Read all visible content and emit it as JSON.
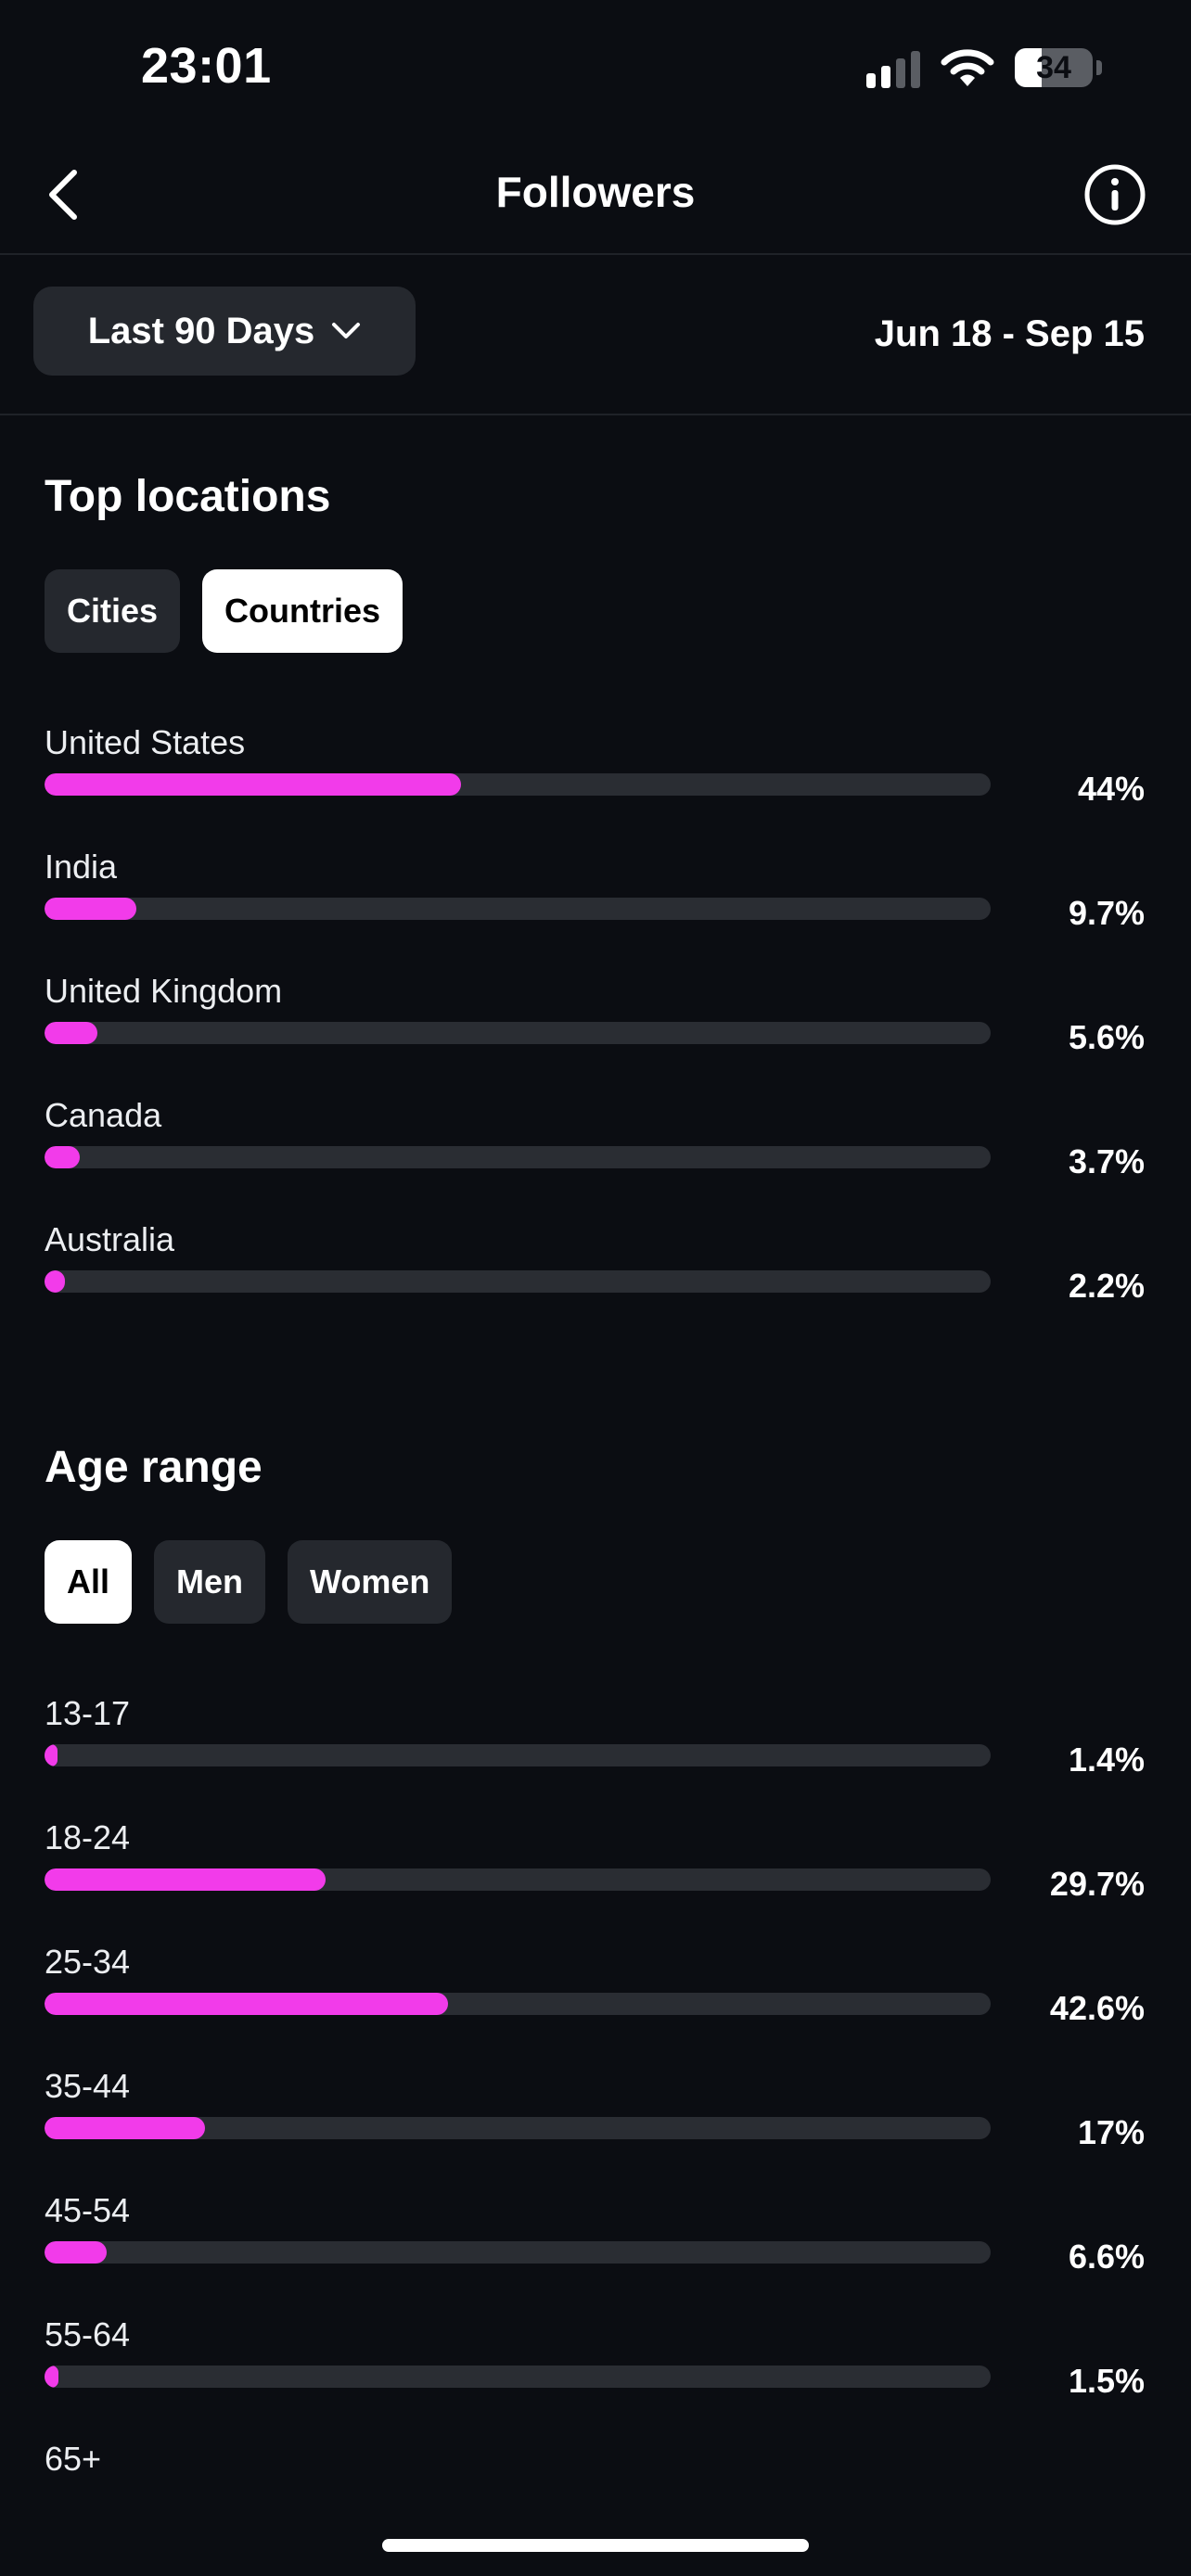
{
  "status_bar": {
    "time": "23:01",
    "battery": "34",
    "battery_level": 0.34,
    "icons": [
      "signal-icon",
      "wifi-icon",
      "battery-icon"
    ]
  },
  "header": {
    "title": "Followers",
    "back_icon": "chevron-left-icon",
    "info_icon": "info-circle-icon"
  },
  "range": {
    "selected": "Last 90 Days",
    "dropdown_icon": "chevron-down-icon",
    "dates": "Jun 18 - Sep 15"
  },
  "top_locations": {
    "title": "Top locations",
    "tabs": [
      {
        "label": "Cities",
        "active": false
      },
      {
        "label": "Countries",
        "active": true
      }
    ],
    "items": [
      {
        "label": "United States",
        "value": "44%",
        "percent": 44
      },
      {
        "label": "India",
        "value": "9.7%",
        "percent": 9.7
      },
      {
        "label": "United Kingdom",
        "value": "5.6%",
        "percent": 5.6
      },
      {
        "label": "Canada",
        "value": "3.7%",
        "percent": 3.7
      },
      {
        "label": "Australia",
        "value": "2.2%",
        "percent": 2.2
      }
    ]
  },
  "age_range": {
    "title": "Age range",
    "tabs": [
      {
        "label": "All",
        "active": true
      },
      {
        "label": "Men",
        "active": false
      },
      {
        "label": "Women",
        "active": false
      }
    ],
    "items": [
      {
        "label": "13-17",
        "value": "1.4%",
        "percent": 1.4
      },
      {
        "label": "18-24",
        "value": "29.7%",
        "percent": 29.7
      },
      {
        "label": "25-34",
        "value": "42.6%",
        "percent": 42.6
      },
      {
        "label": "35-44",
        "value": "17%",
        "percent": 17
      },
      {
        "label": "45-54",
        "value": "6.6%",
        "percent": 6.6
      },
      {
        "label": "55-64",
        "value": "1.5%",
        "percent": 1.5
      },
      {
        "label": "65+",
        "value": "",
        "percent": null
      }
    ]
  },
  "colors": {
    "background": "#0b0d12",
    "accent": "#f23bea",
    "track": "#2a2d33",
    "chip": "#25282e"
  }
}
